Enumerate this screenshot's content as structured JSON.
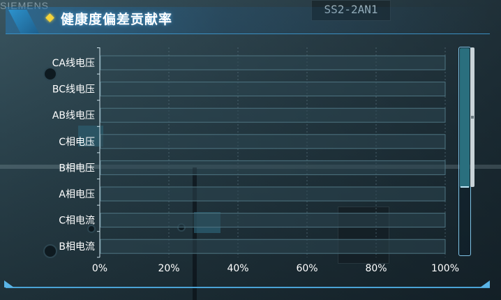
{
  "header": {
    "title": "健康度偏差贡献率"
  },
  "background": {
    "brand_text": "SIEMENS",
    "device_label": "SS2-2AN1"
  },
  "colors": {
    "accent": "#3b8fc2",
    "title_glow": "#50aae6",
    "diamond": "#f3d33b",
    "bar_track": "#2b4550",
    "bar_track_border": "#4f7582",
    "grid": "#5a7480"
  },
  "chart_data": {
    "type": "bar",
    "orientation": "horizontal",
    "categories": [
      "CA线电压",
      "BC线电压",
      "AB线电压",
      "C相电压",
      "B相电压",
      "A相电压",
      "C相电流",
      "B相电流"
    ],
    "values": [
      0,
      0,
      0,
      0,
      0,
      0,
      0,
      0
    ],
    "xlim": [
      0,
      100
    ],
    "x_ticks": [
      "0%",
      "20%",
      "40%",
      "60%",
      "80%",
      "100%"
    ],
    "x_tick_values": [
      0,
      20,
      40,
      60,
      80,
      100
    ],
    "grid": "vertical-dashed",
    "scrollable": true
  }
}
